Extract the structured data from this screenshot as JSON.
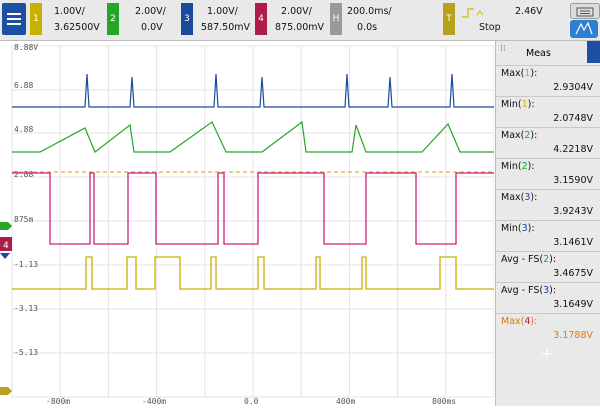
{
  "channels": [
    {
      "num": "1",
      "scale": "1.00V/",
      "offset": "3.62500V",
      "color": "#c8b200",
      "text_color": "#111"
    },
    {
      "num": "2",
      "scale": "2.00V/",
      "offset": "0.0V",
      "color": "#26a626",
      "text_color": "#111"
    },
    {
      "num": "3",
      "scale": "1.00V/",
      "offset": "587.50mV",
      "color": "#1a4a9c",
      "text_color": "#111"
    },
    {
      "num": "4",
      "scale": "2.00V/",
      "offset": "875.00mV",
      "color": "#b01c4a",
      "text_color": "#111"
    }
  ],
  "horizontal": {
    "label": "H",
    "scale": "200.0ms/",
    "delay": "0.0s"
  },
  "trigger": {
    "label": "T",
    "level": "2.46V",
    "state": "Stop"
  },
  "plot": {
    "y_labels": [
      "8.88V",
      "6.88",
      "4.88",
      "2.88",
      "875m",
      "-1.13",
      "-3.13",
      "-5.13"
    ],
    "x_labels": [
      "-800m",
      "-400m",
      "0.0",
      "400m",
      "800ms"
    ],
    "ch4_marker": "4"
  },
  "meas": {
    "title": "Meas",
    "add": "+",
    "rows": [
      {
        "name": "Max",
        "ch": "1",
        "value": "2.9304V",
        "color": "#111"
      },
      {
        "name": "Min",
        "ch": "1",
        "value": "2.0748V",
        "color": "#111"
      },
      {
        "name": "Max",
        "ch": "2",
        "value": "4.2218V",
        "color": "#111"
      },
      {
        "name": "Min",
        "ch": "2",
        "value": "3.1590V",
        "color": "#111"
      },
      {
        "name": "Max",
        "ch": "3",
        "value": "3.9243V",
        "color": "#111"
      },
      {
        "name": "Min",
        "ch": "3",
        "value": "3.1461V",
        "color": "#111"
      },
      {
        "name": "Avg - FS",
        "ch": "2",
        "value": "3.4675V",
        "color": "#111"
      },
      {
        "name": "Avg - FS",
        "ch": "3",
        "value": "3.1649V",
        "color": "#111"
      },
      {
        "name": "Max",
        "ch": "4",
        "value": "3.1788V",
        "color": "#e07a00"
      }
    ]
  }
}
